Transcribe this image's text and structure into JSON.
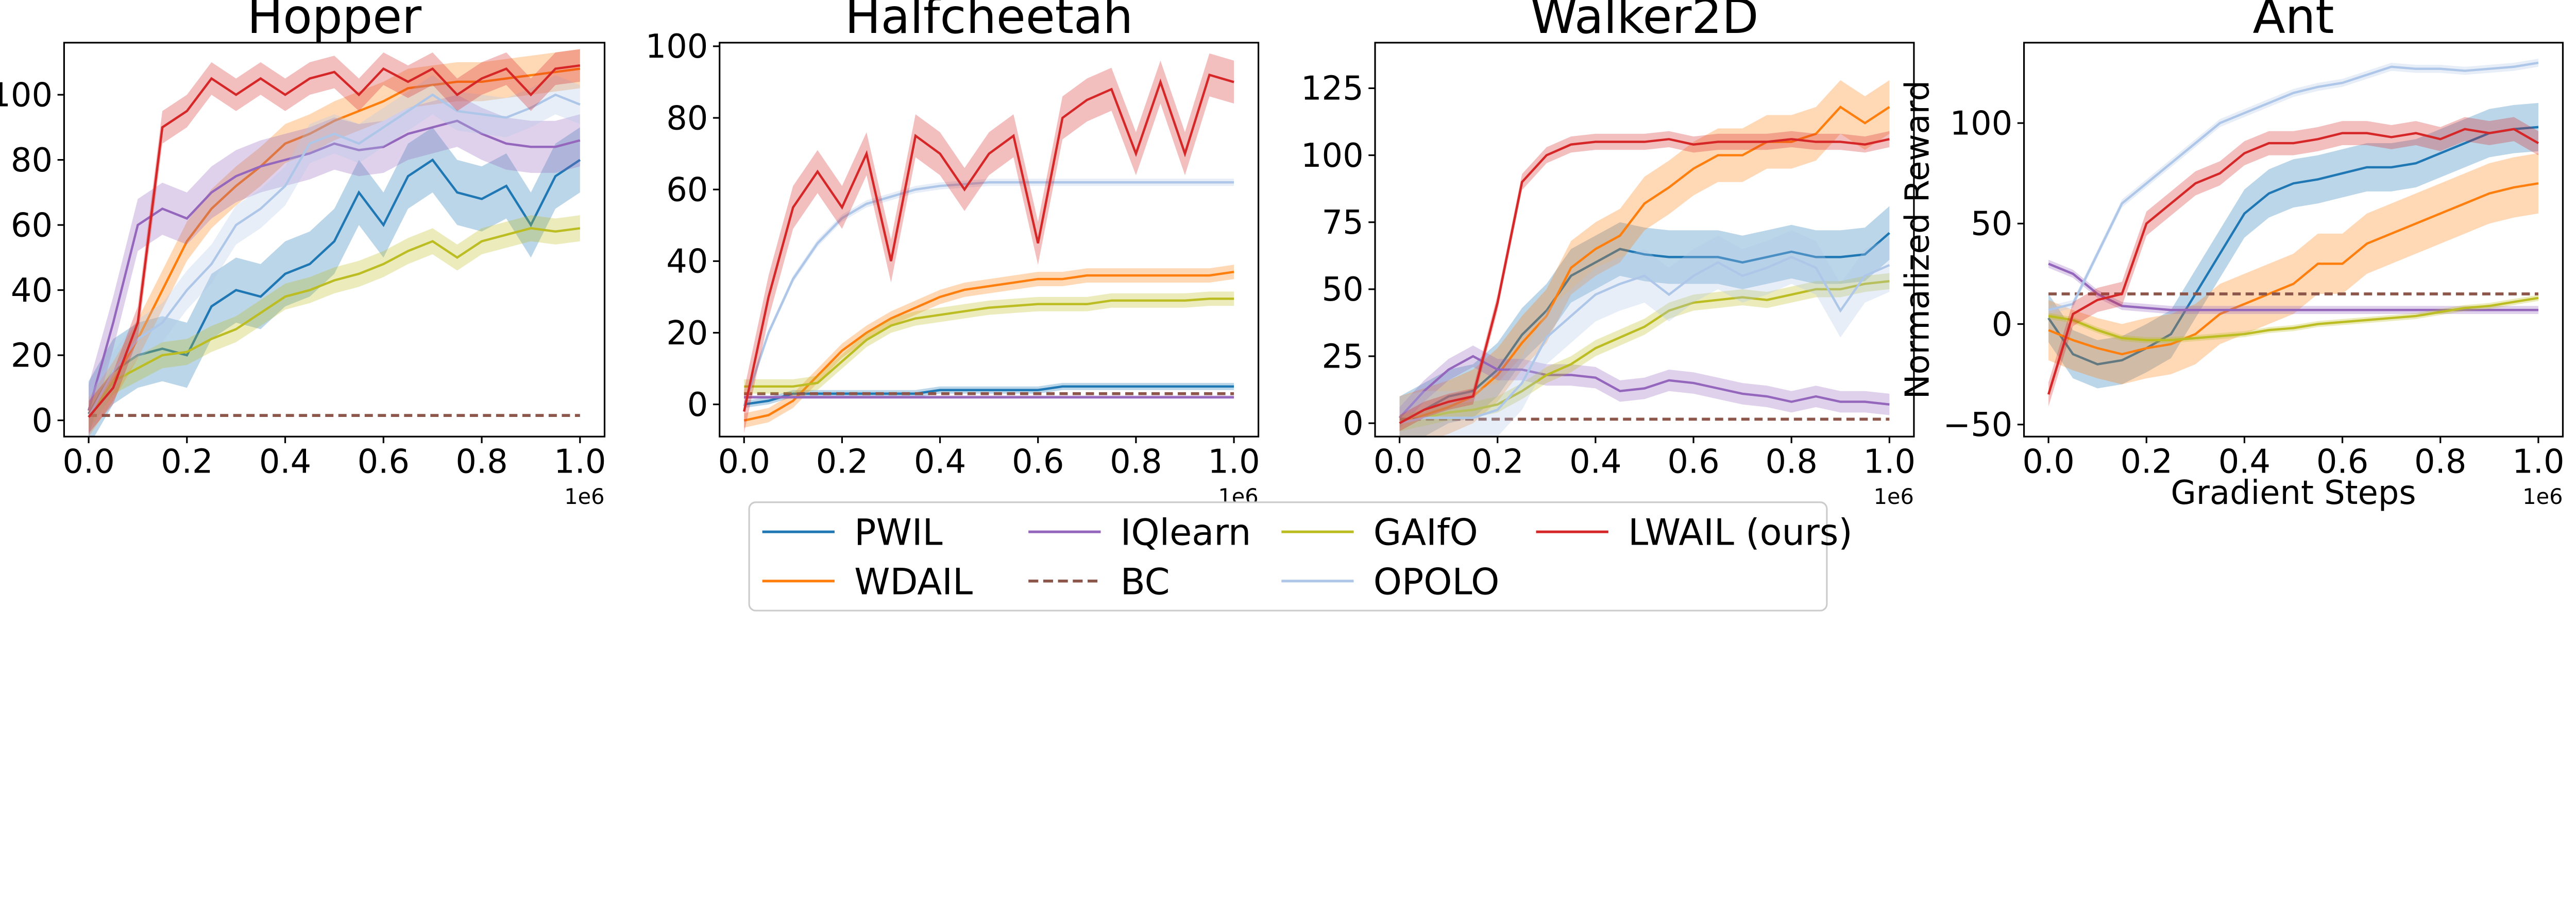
{
  "legend": {
    "placement": "bottom-center",
    "entries": [
      {
        "name": "PWIL",
        "color": "#1f77b4",
        "dashed": false
      },
      {
        "name": "WDAIL",
        "color": "#ff7f0e",
        "dashed": false
      },
      {
        "name": "IQlearn",
        "color": "#9467bd",
        "dashed": false
      },
      {
        "name": "BC",
        "color": "#8c564b",
        "dashed": true
      },
      {
        "name": "GAIfO",
        "color": "#bcbd22",
        "dashed": false
      },
      {
        "name": "OPOLO",
        "color": "#aec7e8",
        "dashed": false
      },
      {
        "name": "LWAIL (ours)",
        "color": "#d62728",
        "dashed": false
      }
    ]
  },
  "chart_data": [
    {
      "type": "line",
      "title": "Hopper",
      "xlabel": "",
      "ylabel": "",
      "x_offset_label": "1e6",
      "xlim": [
        -0.05,
        1.05
      ],
      "ylim": [
        -5,
        116
      ],
      "xticks": [
        "0.0",
        "0.2",
        "0.4",
        "0.6",
        "0.8",
        "1.0"
      ],
      "yticks": [
        "0",
        "20",
        "40",
        "60",
        "80",
        "100"
      ],
      "x": [
        0,
        0.05,
        0.1,
        0.15,
        0.2,
        0.25,
        0.3,
        0.35,
        0.4,
        0.45,
        0.5,
        0.55,
        0.6,
        0.65,
        0.7,
        0.75,
        0.8,
        0.85,
        0.9,
        0.95,
        1.0
      ],
      "series": [
        {
          "name": "PWIL",
          "band": 10,
          "values": [
            2,
            15,
            20,
            22,
            20,
            35,
            40,
            38,
            45,
            48,
            55,
            70,
            60,
            75,
            80,
            70,
            68,
            72,
            60,
            75,
            80
          ]
        },
        {
          "name": "WDAIL",
          "band": 6,
          "values": [
            1,
            12,
            25,
            40,
            55,
            65,
            72,
            78,
            85,
            88,
            92,
            95,
            98,
            102,
            103,
            104,
            104,
            105,
            106,
            107,
            108
          ]
        },
        {
          "name": "IQlearn",
          "band": 8,
          "values": [
            3,
            30,
            60,
            65,
            62,
            70,
            75,
            78,
            80,
            82,
            85,
            83,
            84,
            88,
            90,
            92,
            88,
            85,
            84,
            84,
            86
          ]
        },
        {
          "name": "BC",
          "band": 0,
          "values": [
            1.5,
            1.5,
            1.5,
            1.5,
            1.5,
            1.5,
            1.5,
            1.5,
            1.5,
            1.5,
            1.5,
            1.5,
            1.5,
            1.5,
            1.5,
            1.5,
            1.5,
            1.5,
            1.5,
            1.5,
            1.5
          ]
        },
        {
          "name": "GAIfO",
          "band": 4,
          "values": [
            1,
            12,
            16,
            20,
            21,
            25,
            28,
            33,
            38,
            40,
            43,
            45,
            48,
            52,
            55,
            50,
            55,
            57,
            59,
            58,
            59
          ]
        },
        {
          "name": "OPOLO",
          "band": 6,
          "values": [
            1,
            15,
            25,
            30,
            40,
            48,
            60,
            65,
            72,
            85,
            88,
            85,
            90,
            95,
            100,
            95,
            94,
            93,
            96,
            100,
            97
          ]
        },
        {
          "name": "LWAIL (ours)",
          "band": 5,
          "values": [
            1,
            10,
            30,
            90,
            95,
            105,
            100,
            105,
            100,
            105,
            107,
            100,
            108,
            104,
            108,
            100,
            105,
            108,
            100,
            108,
            109
          ]
        }
      ]
    },
    {
      "type": "line",
      "title": "Halfcheetah",
      "xlabel": "",
      "ylabel": "",
      "x_offset_label": "1e6",
      "xlim": [
        -0.05,
        1.05
      ],
      "ylim": [
        -9,
        101
      ],
      "xticks": [
        "0.0",
        "0.2",
        "0.4",
        "0.6",
        "0.8",
        "1.0"
      ],
      "yticks": [
        "0",
        "20",
        "40",
        "60",
        "80",
        "100"
      ],
      "x": [
        0,
        0.05,
        0.1,
        0.15,
        0.2,
        0.25,
        0.3,
        0.35,
        0.4,
        0.45,
        0.5,
        0.55,
        0.6,
        0.65,
        0.7,
        0.75,
        0.8,
        0.85,
        0.9,
        0.95,
        1.0
      ],
      "series": [
        {
          "name": "PWIL",
          "band": 1,
          "values": [
            0,
            1,
            3,
            3,
            3,
            3,
            3,
            3,
            4,
            4,
            4,
            4,
            4,
            5,
            5,
            5,
            5,
            5,
            5,
            5,
            5
          ]
        },
        {
          "name": "WDAIL",
          "band": 2,
          "values": [
            -4.5,
            -3,
            1,
            8,
            15,
            20,
            24,
            27,
            30,
            32,
            33,
            34,
            35,
            35,
            36,
            36,
            36,
            36,
            36,
            36,
            37
          ]
        },
        {
          "name": "IQlearn",
          "band": 0.5,
          "values": [
            2,
            2,
            2,
            2,
            2,
            2,
            2,
            2,
            2,
            2,
            2,
            2,
            2,
            2,
            2,
            2,
            2,
            2,
            2,
            2,
            2
          ]
        },
        {
          "name": "BC",
          "band": 0,
          "values": [
            3,
            3,
            3,
            3,
            3,
            3,
            3,
            3,
            3,
            3,
            3,
            3,
            3,
            3,
            3,
            3,
            3,
            3,
            3,
            3,
            3
          ]
        },
        {
          "name": "GAIfO",
          "band": 2,
          "values": [
            5,
            5,
            5,
            6,
            12,
            18,
            22,
            24,
            25,
            26,
            27,
            27.5,
            28,
            28,
            28,
            29,
            29,
            29,
            29,
            29.5,
            29.5
          ]
        },
        {
          "name": "OPOLO",
          "band": 1,
          "values": [
            -0.5,
            20,
            35,
            45,
            52,
            56,
            58,
            60,
            61,
            61.5,
            62,
            62,
            62,
            62,
            62,
            62,
            62,
            62,
            62,
            62,
            62
          ]
        },
        {
          "name": "LWAIL (ours)",
          "band": 6,
          "values": [
            -2,
            30,
            55,
            65,
            55,
            70,
            40,
            75,
            70,
            60,
            70,
            75,
            45,
            80,
            85,
            88,
            70,
            90,
            70,
            92,
            90
          ]
        }
      ]
    },
    {
      "type": "line",
      "title": "Walker2D",
      "xlabel": "",
      "ylabel": "",
      "x_offset_label": "1e6",
      "xlim": [
        -0.05,
        1.05
      ],
      "ylim": [
        -5,
        142
      ],
      "xticks": [
        "0.0",
        "0.2",
        "0.4",
        "0.6",
        "0.8",
        "1.0"
      ],
      "yticks": [
        "0",
        "25",
        "50",
        "75",
        "100",
        "125"
      ],
      "x": [
        0,
        0.05,
        0.1,
        0.15,
        0.2,
        0.25,
        0.3,
        0.35,
        0.4,
        0.45,
        0.5,
        0.55,
        0.6,
        0.65,
        0.7,
        0.75,
        0.8,
        0.85,
        0.9,
        0.95,
        1.0
      ],
      "series": [
        {
          "name": "PWIL",
          "band": 10,
          "values": [
            0,
            5,
            10,
            12,
            20,
            33,
            42,
            55,
            60,
            65,
            63,
            62,
            62,
            62,
            60,
            62,
            64,
            62,
            62,
            63,
            71
          ]
        },
        {
          "name": "WDAIL",
          "band": 10,
          "values": [
            0,
            3,
            6,
            10,
            18,
            30,
            40,
            58,
            65,
            70,
            82,
            88,
            95,
            100,
            100,
            105,
            105,
            108,
            118,
            112,
            118
          ]
        },
        {
          "name": "IQlearn",
          "band": 4,
          "values": [
            2,
            12,
            20,
            25,
            20,
            20,
            18,
            18,
            17,
            12,
            13,
            16,
            15,
            13,
            11,
            10,
            8,
            10,
            8,
            8,
            7
          ]
        },
        {
          "name": "BC",
          "band": 0,
          "values": [
            1.5,
            1.5,
            1.5,
            1.5,
            1.5,
            1.5,
            1.5,
            1.5,
            1.5,
            1.5,
            1.5,
            1.5,
            1.5,
            1.5,
            1.5,
            1.5,
            1.5,
            1.5,
            1.5,
            1.5,
            1.5
          ]
        },
        {
          "name": "GAIfO",
          "band": 3,
          "values": [
            0,
            2,
            4,
            5,
            7,
            12,
            18,
            22,
            28,
            32,
            36,
            42,
            45,
            46,
            47,
            46,
            48,
            50,
            50,
            52,
            53
          ]
        },
        {
          "name": "OPOLO",
          "band": 10,
          "values": [
            0,
            2,
            2,
            2,
            5,
            15,
            32,
            40,
            48,
            52,
            55,
            48,
            55,
            60,
            55,
            58,
            62,
            58,
            42,
            55,
            59
          ]
        },
        {
          "name": "LWAIL (ours)",
          "band": 3,
          "values": [
            0,
            5,
            8,
            10,
            45,
            90,
            100,
            104,
            105,
            105,
            105,
            106,
            104,
            105,
            105,
            105,
            106,
            105,
            105,
            104,
            106
          ]
        }
      ]
    },
    {
      "type": "line",
      "title": "Ant",
      "xlabel": "Gradient Steps",
      "ylabel": "Normalized Reward",
      "x_offset_label": "1e6",
      "xlim": [
        -0.05,
        1.05
      ],
      "ylim": [
        -56,
        140
      ],
      "xticks": [
        "0.0",
        "0.2",
        "0.4",
        "0.6",
        "0.8",
        "1.0"
      ],
      "yticks": [
        "−50",
        "0",
        "50",
        "100"
      ],
      "x": [
        0,
        0.05,
        0.1,
        0.15,
        0.2,
        0.25,
        0.3,
        0.35,
        0.4,
        0.45,
        0.5,
        0.55,
        0.6,
        0.65,
        0.7,
        0.75,
        0.8,
        0.85,
        0.9,
        0.95,
        1.0
      ],
      "series": [
        {
          "name": "PWIL",
          "band": 12,
          "values": [
            3,
            -15,
            -20,
            -18,
            -12,
            -5,
            15,
            35,
            55,
            65,
            70,
            72,
            75,
            78,
            78,
            80,
            85,
            90,
            95,
            97,
            98
          ]
        },
        {
          "name": "WDAIL",
          "band": 15,
          "values": [
            -3,
            -8,
            -12,
            -15,
            -12,
            -10,
            -5,
            5,
            10,
            15,
            20,
            30,
            30,
            40,
            45,
            50,
            55,
            60,
            65,
            68,
            70
          ]
        },
        {
          "name": "IQlearn",
          "band": 2,
          "values": [
            30,
            25,
            15,
            9,
            8,
            7,
            7,
            7,
            7,
            7,
            7,
            7,
            7,
            7,
            7,
            7,
            7,
            7,
            7,
            7,
            7
          ]
        },
        {
          "name": "BC",
          "band": 0,
          "values": [
            15,
            15,
            15,
            15,
            15,
            15,
            15,
            15,
            15,
            15,
            15,
            15,
            15,
            15,
            15,
            15,
            15,
            15,
            15,
            15,
            15
          ]
        },
        {
          "name": "GAIfO",
          "band": 1.5,
          "values": [
            4,
            2,
            -3,
            -7,
            -8,
            -8,
            -7,
            -6,
            -5,
            -3,
            -2,
            0,
            1,
            2,
            3,
            4,
            6,
            8,
            9,
            11,
            13
          ]
        },
        {
          "name": "OPOLO",
          "band": 2,
          "values": [
            7,
            10,
            35,
            60,
            70,
            80,
            90,
            100,
            105,
            110,
            115,
            118,
            120,
            124,
            128,
            127,
            127,
            126,
            127,
            128,
            130
          ]
        },
        {
          "name": "LWAIL (ours)",
          "band": 6,
          "values": [
            -35,
            5,
            12,
            15,
            50,
            60,
            70,
            75,
            85,
            90,
            90,
            92,
            95,
            95,
            93,
            95,
            92,
            97,
            95,
            97,
            90
          ]
        }
      ]
    }
  ]
}
